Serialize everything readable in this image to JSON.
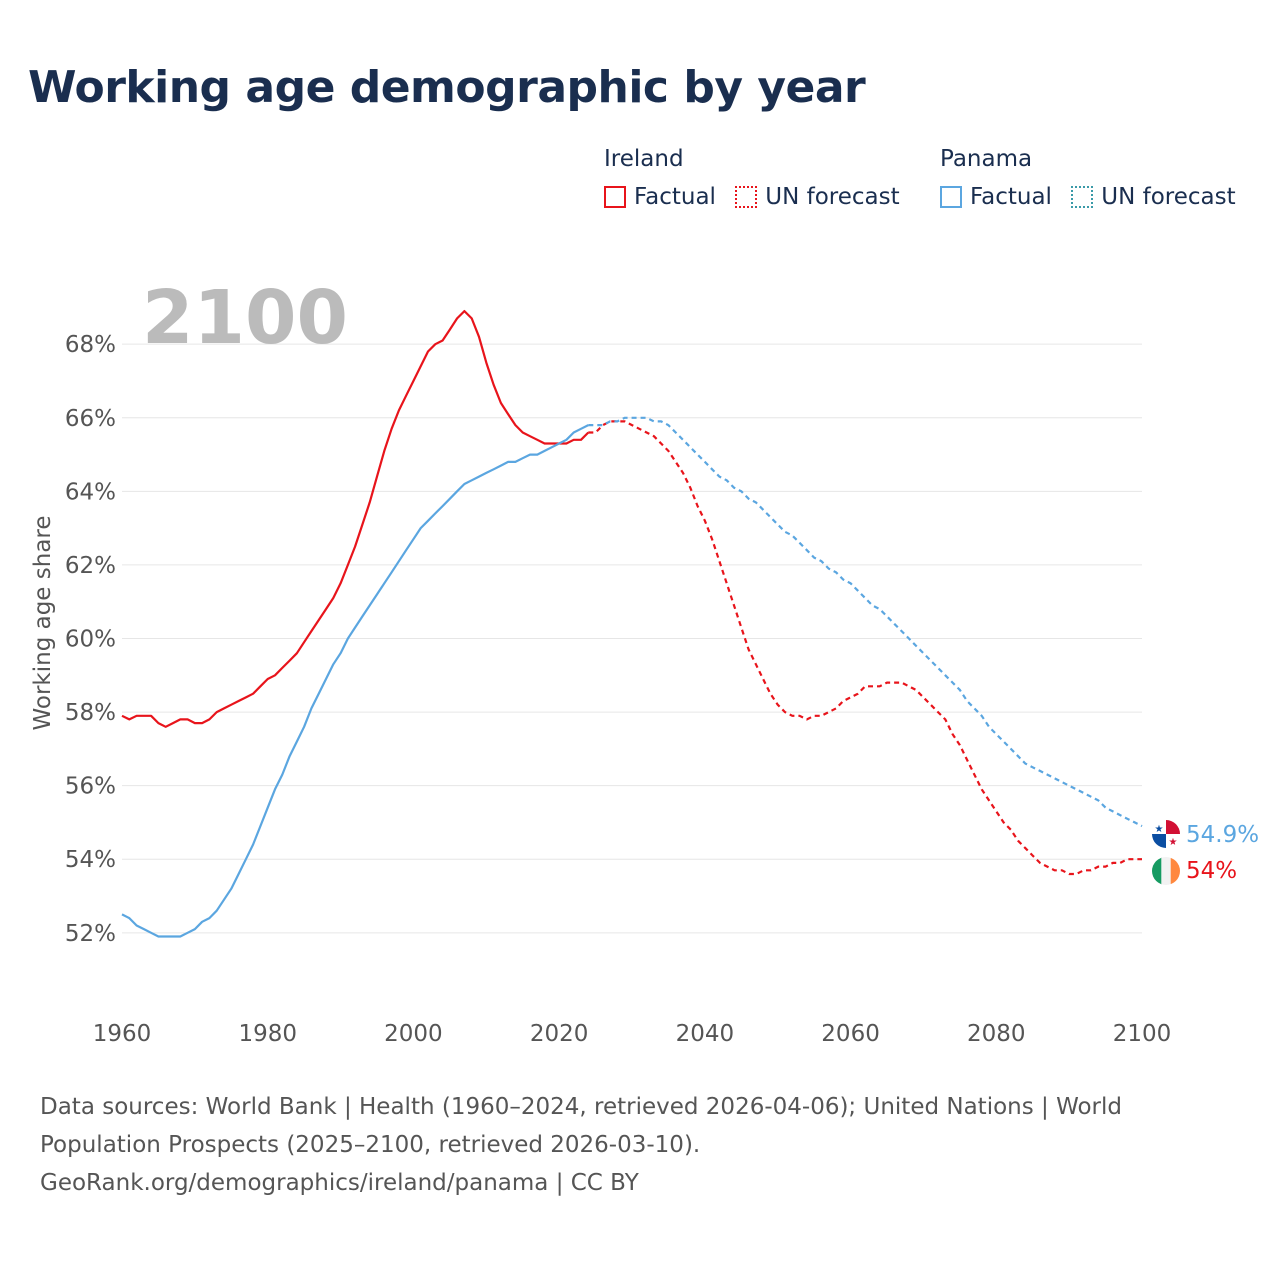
{
  "title": "Working age demographic by year",
  "colors": {
    "ireland": "#e8141b",
    "panama": "#5ba6e0",
    "grid": "#e6e6e6",
    "axis_text": "#555555",
    "year_watermark": "#bbbbbb"
  },
  "legend": {
    "ireland": {
      "country": "Ireland",
      "factual": "Factual",
      "forecast": "UN forecast"
    },
    "panama": {
      "country": "Panama",
      "factual": "Factual",
      "forecast": "UN forecast"
    }
  },
  "current_year": "2100",
  "end_labels": {
    "panama": "54.9%",
    "ireland": "54%"
  },
  "icons": {
    "panama": "panama-flag-icon",
    "ireland": "ireland-flag-icon"
  },
  "source": {
    "line1": "Data sources: World Bank | Health (1960–2024, retrieved 2026-04-06); United Nations | World Population Prospects (2025–2100, retrieved 2026-03-10).",
    "line2": "GeoRank.org/demographics/ireland/panama | CC BY"
  },
  "chart_data": {
    "type": "line",
    "title": "Working age demographic by year",
    "xlabel": "",
    "ylabel": "Working age share",
    "xlim": [
      1960,
      2100
    ],
    "ylim": [
      50.5,
      69.5
    ],
    "x_ticks": [
      1960,
      1980,
      2000,
      2020,
      2040,
      2060,
      2080,
      2100
    ],
    "y_ticks": [
      52,
      54,
      56,
      58,
      60,
      62,
      64,
      66,
      68
    ],
    "y_tick_labels": [
      "52%",
      "54%",
      "56%",
      "58%",
      "60%",
      "62%",
      "64%",
      "66%",
      "68%"
    ],
    "grid": true,
    "factual_end_year": 2024,
    "series": [
      {
        "name": "Ireland",
        "points": [
          [
            1960,
            57.9
          ],
          [
            1961,
            57.8
          ],
          [
            1962,
            57.9
          ],
          [
            1963,
            57.9
          ],
          [
            1964,
            57.9
          ],
          [
            1965,
            57.7
          ],
          [
            1966,
            57.6
          ],
          [
            1967,
            57.7
          ],
          [
            1968,
            57.8
          ],
          [
            1969,
            57.8
          ],
          [
            1970,
            57.7
          ],
          [
            1971,
            57.7
          ],
          [
            1972,
            57.8
          ],
          [
            1973,
            58.0
          ],
          [
            1974,
            58.1
          ],
          [
            1975,
            58.2
          ],
          [
            1976,
            58.3
          ],
          [
            1977,
            58.4
          ],
          [
            1978,
            58.5
          ],
          [
            1979,
            58.7
          ],
          [
            1980,
            58.9
          ],
          [
            1981,
            59.0
          ],
          [
            1982,
            59.2
          ],
          [
            1983,
            59.4
          ],
          [
            1984,
            59.6
          ],
          [
            1985,
            59.9
          ],
          [
            1986,
            60.2
          ],
          [
            1987,
            60.5
          ],
          [
            1988,
            60.8
          ],
          [
            1989,
            61.1
          ],
          [
            1990,
            61.5
          ],
          [
            1991,
            62.0
          ],
          [
            1992,
            62.5
          ],
          [
            1993,
            63.1
          ],
          [
            1994,
            63.7
          ],
          [
            1995,
            64.4
          ],
          [
            1996,
            65.1
          ],
          [
            1997,
            65.7
          ],
          [
            1998,
            66.2
          ],
          [
            1999,
            66.6
          ],
          [
            2000,
            67.0
          ],
          [
            2001,
            67.4
          ],
          [
            2002,
            67.8
          ],
          [
            2003,
            68.0
          ],
          [
            2004,
            68.1
          ],
          [
            2005,
            68.4
          ],
          [
            2006,
            68.7
          ],
          [
            2007,
            68.9
          ],
          [
            2008,
            68.7
          ],
          [
            2009,
            68.2
          ],
          [
            2010,
            67.5
          ],
          [
            2011,
            66.9
          ],
          [
            2012,
            66.4
          ],
          [
            2013,
            66.1
          ],
          [
            2014,
            65.8
          ],
          [
            2015,
            65.6
          ],
          [
            2016,
            65.5
          ],
          [
            2017,
            65.4
          ],
          [
            2018,
            65.3
          ],
          [
            2019,
            65.3
          ],
          [
            2020,
            65.3
          ],
          [
            2021,
            65.3
          ],
          [
            2022,
            65.4
          ],
          [
            2023,
            65.4
          ],
          [
            2024,
            65.6
          ],
          [
            2025,
            65.6
          ],
          [
            2026,
            65.8
          ],
          [
            2027,
            65.9
          ],
          [
            2028,
            65.9
          ],
          [
            2029,
            65.9
          ],
          [
            2030,
            65.8
          ],
          [
            2031,
            65.7
          ],
          [
            2032,
            65.6
          ],
          [
            2033,
            65.5
          ],
          [
            2034,
            65.3
          ],
          [
            2035,
            65.1
          ],
          [
            2036,
            64.8
          ],
          [
            2037,
            64.5
          ],
          [
            2038,
            64.1
          ],
          [
            2039,
            63.6
          ],
          [
            2040,
            63.2
          ],
          [
            2041,
            62.7
          ],
          [
            2042,
            62.1
          ],
          [
            2043,
            61.5
          ],
          [
            2044,
            60.9
          ],
          [
            2045,
            60.3
          ],
          [
            2046,
            59.7
          ],
          [
            2047,
            59.3
          ],
          [
            2048,
            58.9
          ],
          [
            2049,
            58.5
          ],
          [
            2050,
            58.2
          ],
          [
            2051,
            58.0
          ],
          [
            2052,
            57.9
          ],
          [
            2053,
            57.9
          ],
          [
            2054,
            57.8
          ],
          [
            2055,
            57.9
          ],
          [
            2056,
            57.9
          ],
          [
            2057,
            58.0
          ],
          [
            2058,
            58.1
          ],
          [
            2059,
            58.3
          ],
          [
            2060,
            58.4
          ],
          [
            2061,
            58.5
          ],
          [
            2062,
            58.7
          ],
          [
            2063,
            58.7
          ],
          [
            2064,
            58.7
          ],
          [
            2065,
            58.8
          ],
          [
            2066,
            58.8
          ],
          [
            2067,
            58.8
          ],
          [
            2068,
            58.7
          ],
          [
            2069,
            58.6
          ],
          [
            2070,
            58.4
          ],
          [
            2071,
            58.2
          ],
          [
            2072,
            58.0
          ],
          [
            2073,
            57.8
          ],
          [
            2074,
            57.4
          ],
          [
            2075,
            57.1
          ],
          [
            2076,
            56.7
          ],
          [
            2077,
            56.3
          ],
          [
            2078,
            55.9
          ],
          [
            2079,
            55.6
          ],
          [
            2080,
            55.3
          ],
          [
            2081,
            55.0
          ],
          [
            2082,
            54.8
          ],
          [
            2083,
            54.5
          ],
          [
            2084,
            54.3
          ],
          [
            2085,
            54.1
          ],
          [
            2086,
            53.9
          ],
          [
            2087,
            53.8
          ],
          [
            2088,
            53.7
          ],
          [
            2089,
            53.7
          ],
          [
            2090,
            53.6
          ],
          [
            2091,
            53.6
          ],
          [
            2092,
            53.7
          ],
          [
            2093,
            53.7
          ],
          [
            2094,
            53.8
          ],
          [
            2095,
            53.8
          ],
          [
            2096,
            53.9
          ],
          [
            2097,
            53.9
          ],
          [
            2098,
            54.0
          ],
          [
            2099,
            54.0
          ],
          [
            2100,
            54.0
          ]
        ]
      },
      {
        "name": "Panama",
        "points": [
          [
            1960,
            52.5
          ],
          [
            1961,
            52.4
          ],
          [
            1962,
            52.2
          ],
          [
            1963,
            52.1
          ],
          [
            1964,
            52.0
          ],
          [
            1965,
            51.9
          ],
          [
            1966,
            51.9
          ],
          [
            1967,
            51.9
          ],
          [
            1968,
            51.9
          ],
          [
            1969,
            52.0
          ],
          [
            1970,
            52.1
          ],
          [
            1971,
            52.3
          ],
          [
            1972,
            52.4
          ],
          [
            1973,
            52.6
          ],
          [
            1974,
            52.9
          ],
          [
            1975,
            53.2
          ],
          [
            1976,
            53.6
          ],
          [
            1977,
            54.0
          ],
          [
            1978,
            54.4
          ],
          [
            1979,
            54.9
          ],
          [
            1980,
            55.4
          ],
          [
            1981,
            55.9
          ],
          [
            1982,
            56.3
          ],
          [
            1983,
            56.8
          ],
          [
            1984,
            57.2
          ],
          [
            1985,
            57.6
          ],
          [
            1986,
            58.1
          ],
          [
            1987,
            58.5
          ],
          [
            1988,
            58.9
          ],
          [
            1989,
            59.3
          ],
          [
            1990,
            59.6
          ],
          [
            1991,
            60.0
          ],
          [
            1992,
            60.3
          ],
          [
            1993,
            60.6
          ],
          [
            1994,
            60.9
          ],
          [
            1995,
            61.2
          ],
          [
            1996,
            61.5
          ],
          [
            1997,
            61.8
          ],
          [
            1998,
            62.1
          ],
          [
            1999,
            62.4
          ],
          [
            2000,
            62.7
          ],
          [
            2001,
            63.0
          ],
          [
            2002,
            63.2
          ],
          [
            2003,
            63.4
          ],
          [
            2004,
            63.6
          ],
          [
            2005,
            63.8
          ],
          [
            2006,
            64.0
          ],
          [
            2007,
            64.2
          ],
          [
            2008,
            64.3
          ],
          [
            2009,
            64.4
          ],
          [
            2010,
            64.5
          ],
          [
            2011,
            64.6
          ],
          [
            2012,
            64.7
          ],
          [
            2013,
            64.8
          ],
          [
            2014,
            64.8
          ],
          [
            2015,
            64.9
          ],
          [
            2016,
            65.0
          ],
          [
            2017,
            65.0
          ],
          [
            2018,
            65.1
          ],
          [
            2019,
            65.2
          ],
          [
            2020,
            65.3
          ],
          [
            2021,
            65.4
          ],
          [
            2022,
            65.6
          ],
          [
            2023,
            65.7
          ],
          [
            2024,
            65.8
          ],
          [
            2025,
            65.8
          ],
          [
            2026,
            65.8
          ],
          [
            2027,
            65.9
          ],
          [
            2028,
            65.9
          ],
          [
            2029,
            66.0
          ],
          [
            2030,
            66.0
          ],
          [
            2031,
            66.0
          ],
          [
            2032,
            66.0
          ],
          [
            2033,
            65.9
          ],
          [
            2034,
            65.9
          ],
          [
            2035,
            65.8
          ],
          [
            2036,
            65.6
          ],
          [
            2037,
            65.4
          ],
          [
            2038,
            65.2
          ],
          [
            2039,
            65.0
          ],
          [
            2040,
            64.8
          ],
          [
            2041,
            64.6
          ],
          [
            2042,
            64.4
          ],
          [
            2043,
            64.3
          ],
          [
            2044,
            64.1
          ],
          [
            2045,
            64.0
          ],
          [
            2046,
            63.8
          ],
          [
            2047,
            63.7
          ],
          [
            2048,
            63.5
          ],
          [
            2049,
            63.3
          ],
          [
            2050,
            63.1
          ],
          [
            2051,
            62.9
          ],
          [
            2052,
            62.8
          ],
          [
            2053,
            62.6
          ],
          [
            2054,
            62.4
          ],
          [
            2055,
            62.2
          ],
          [
            2056,
            62.1
          ],
          [
            2057,
            61.9
          ],
          [
            2058,
            61.8
          ],
          [
            2059,
            61.6
          ],
          [
            2060,
            61.5
          ],
          [
            2061,
            61.3
          ],
          [
            2062,
            61.1
          ],
          [
            2063,
            60.9
          ],
          [
            2064,
            60.8
          ],
          [
            2065,
            60.6
          ],
          [
            2066,
            60.4
          ],
          [
            2067,
            60.2
          ],
          [
            2068,
            60.0
          ],
          [
            2069,
            59.8
          ],
          [
            2070,
            59.6
          ],
          [
            2071,
            59.4
          ],
          [
            2072,
            59.2
          ],
          [
            2073,
            59.0
          ],
          [
            2074,
            58.8
          ],
          [
            2075,
            58.6
          ],
          [
            2076,
            58.3
          ],
          [
            2077,
            58.1
          ],
          [
            2078,
            57.9
          ],
          [
            2079,
            57.6
          ],
          [
            2080,
            57.4
          ],
          [
            2081,
            57.2
          ],
          [
            2082,
            57.0
          ],
          [
            2083,
            56.8
          ],
          [
            2084,
            56.6
          ],
          [
            2085,
            56.5
          ],
          [
            2086,
            56.4
          ],
          [
            2087,
            56.3
          ],
          [
            2088,
            56.2
          ],
          [
            2089,
            56.1
          ],
          [
            2090,
            56.0
          ],
          [
            2091,
            55.9
          ],
          [
            2092,
            55.8
          ],
          [
            2093,
            55.7
          ],
          [
            2094,
            55.6
          ],
          [
            2095,
            55.4
          ],
          [
            2096,
            55.3
          ],
          [
            2097,
            55.2
          ],
          [
            2098,
            55.1
          ],
          [
            2099,
            55.0
          ],
          [
            2100,
            54.9
          ]
        ]
      }
    ]
  }
}
